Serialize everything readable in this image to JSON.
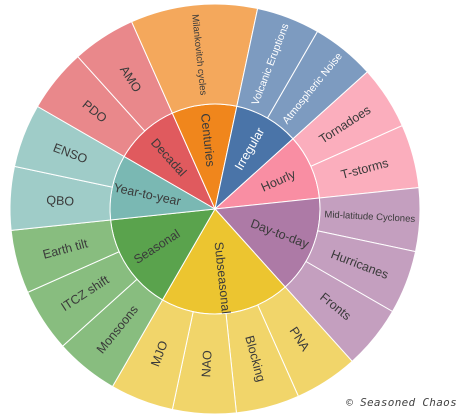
{
  "chart_data": {
    "type": "sunburst",
    "credit": "© Seasoned Chaos",
    "categories": [
      {
        "label": "Decadal",
        "color": "#e05a5e",
        "children": [
          {
            "label": "PDO",
            "value": 1
          },
          {
            "label": "AMO",
            "value": 1
          }
        ]
      },
      {
        "label": "Centuries",
        "color": "#f0861c",
        "children": [
          {
            "label": "Milankovitch cycles",
            "value": 2
          }
        ]
      },
      {
        "label": "Irregular",
        "color": "#4a74a8",
        "children": [
          {
            "label": "Volcanic Eruptions",
            "value": 1
          },
          {
            "label": "Atmospheric Noise",
            "value": 1
          }
        ]
      },
      {
        "label": "Hourly",
        "color": "#f98ea3",
        "children": [
          {
            "label": "Tornadoes",
            "value": 1
          },
          {
            "label": "T-storms",
            "value": 1
          }
        ]
      },
      {
        "label": "Day-to-day",
        "color": "#ad7aa6",
        "children": [
          {
            "label": "Mid-latitude Cyclones",
            "value": 1
          },
          {
            "label": "Hurricanes",
            "value": 1
          },
          {
            "label": "Fronts",
            "value": 1
          }
        ]
      },
      {
        "label": "Subseasonal",
        "color": "#ecc530",
        "children": [
          {
            "label": "PNA",
            "value": 1
          },
          {
            "label": "Blocking",
            "value": 1
          },
          {
            "label": "NAO",
            "value": 1
          },
          {
            "label": "MJO",
            "value": 1
          }
        ]
      },
      {
        "label": "Seasonal",
        "color": "#5aa34d",
        "children": [
          {
            "label": "Monsoons",
            "value": 1
          },
          {
            "label": "ITCZ shift",
            "value": 1
          },
          {
            "label": "Earth tilt",
            "value": 1
          }
        ]
      },
      {
        "label": "Year-to-year",
        "color": "#7ab8b3",
        "children": [
          {
            "label": "QBO",
            "value": 1
          },
          {
            "label": "ENSO",
            "value": 1
          }
        ]
      }
    ]
  }
}
